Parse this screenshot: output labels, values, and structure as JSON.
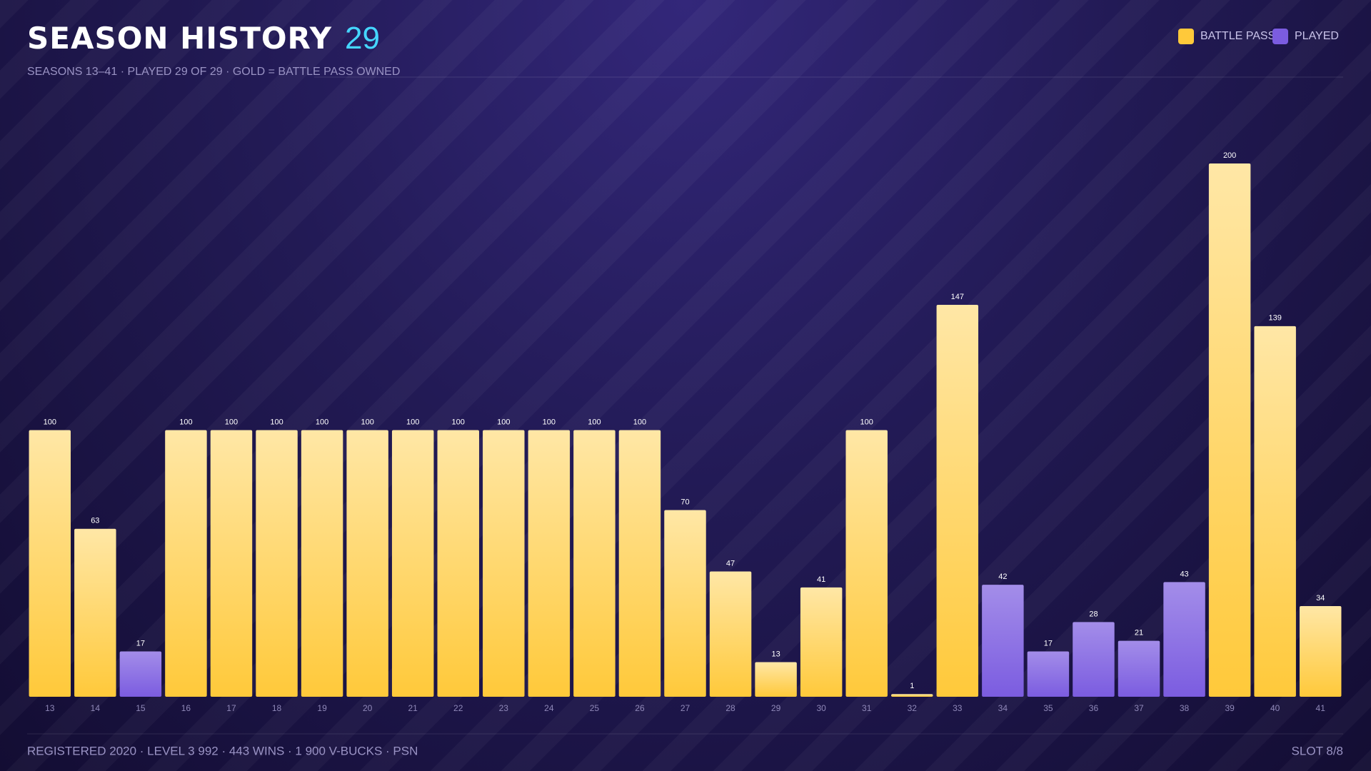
{
  "chart_data": {
    "type": "bar",
    "title": "SEASON HISTORY",
    "count": 29,
    "subtitle": "SEASONS 13–41 · PLAYED 29 OF 29 · GOLD = BATTLE PASS OWNED",
    "legend": [
      {
        "name": "BATTLE PASS",
        "color": "#ffc93a"
      },
      {
        "name": "PLAYED",
        "color": "#7b5ce0"
      }
    ],
    "categories": [
      "13",
      "14",
      "15",
      "16",
      "17",
      "18",
      "19",
      "20",
      "21",
      "22",
      "23",
      "24",
      "25",
      "26",
      "27",
      "28",
      "29",
      "30",
      "31",
      "32",
      "33",
      "34",
      "35",
      "36",
      "37",
      "38",
      "39",
      "40",
      "41"
    ],
    "values": [
      100,
      63,
      17,
      100,
      100,
      100,
      100,
      100,
      100,
      100,
      100,
      100,
      100,
      100,
      70,
      47,
      13,
      41,
      100,
      1,
      147,
      42,
      17,
      28,
      21,
      43,
      200,
      139,
      34
    ],
    "battle_pass": [
      true,
      true,
      false,
      true,
      true,
      true,
      true,
      true,
      true,
      true,
      true,
      true,
      true,
      true,
      true,
      true,
      true,
      true,
      true,
      true,
      true,
      false,
      false,
      false,
      false,
      false,
      true,
      true,
      true
    ],
    "ylim": [
      0,
      200
    ],
    "footer": "REGISTERED 2020 · LEVEL 3 992 · 443 WINS · 1 900 V-BUCKS · PSN",
    "slot": "SLOT 8/8"
  }
}
